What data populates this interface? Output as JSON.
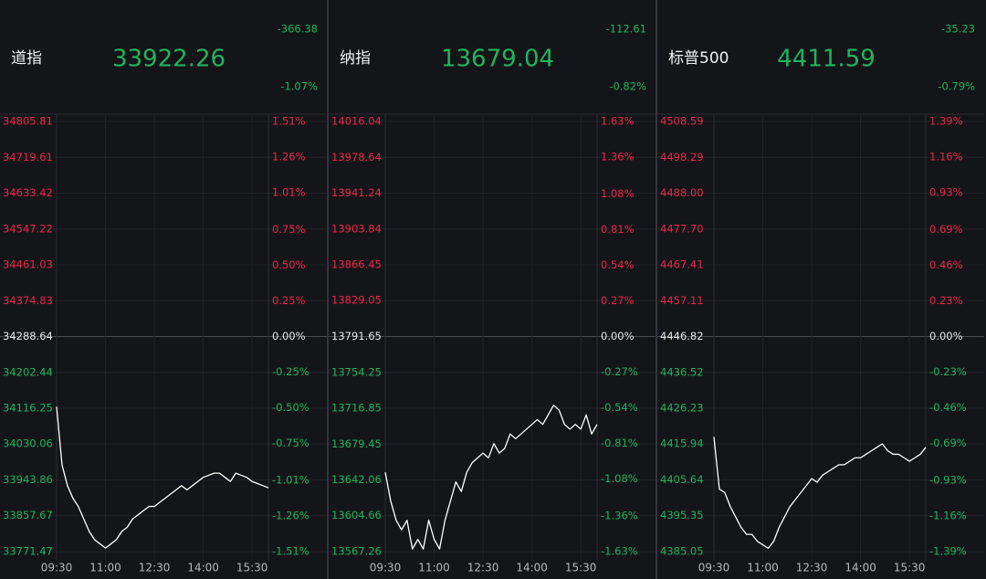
{
  "chart_data": [
    {
      "type": "line",
      "title": "道指",
      "price": 33922.26,
      "change": -366.38,
      "change_pct": {
        "value": -1.07,
        "label": "-1.07%"
      },
      "color": "#ffffff",
      "x": [
        "09:30",
        "09:40",
        "09:50",
        "10:00",
        "10:10",
        "10:20",
        "10:30",
        "10:40",
        "10:50",
        "11:00",
        "11:10",
        "11:20",
        "11:30",
        "11:40",
        "11:50",
        "12:00",
        "12:10",
        "12:20",
        "12:30",
        "12:40",
        "12:50",
        "13:00",
        "13:10",
        "13:20",
        "13:30",
        "13:40",
        "13:50",
        "14:00",
        "14:10",
        "14:20",
        "14:30",
        "14:40",
        "14:50",
        "15:00",
        "15:10",
        "15:20",
        "15:30",
        "15:40",
        "15:50",
        "16:00"
      ],
      "values": [
        34120,
        33980,
        33930,
        33900,
        33880,
        33850,
        33820,
        33800,
        33790,
        33780,
        33790,
        33800,
        33820,
        33830,
        33850,
        33860,
        33870,
        33880,
        33880,
        33890,
        33900,
        33910,
        33920,
        33930,
        33920,
        33930,
        33940,
        33950,
        33955,
        33960,
        33960,
        33950,
        33940,
        33960,
        33955,
        33950,
        33940,
        33935,
        33930,
        33925
      ],
      "xticks": [
        "09:30",
        "11:00",
        "12:30",
        "14:00",
        "15:30"
      ],
      "ylim": [
        33771.47,
        34805.81
      ],
      "yticks": [
        34805.81,
        34719.61,
        34633.42,
        34547.22,
        34461.03,
        34374.83,
        34288.64,
        34202.44,
        34116.25,
        34030.06,
        33943.86,
        33857.67,
        33771.47
      ],
      "y2lim": [
        -1.51,
        1.51
      ],
      "y2ticks": [
        {
          "value": 1.51,
          "label": "1.51%"
        },
        {
          "value": 1.26,
          "label": "1.26%"
        },
        {
          "value": 1.01,
          "label": "1.01%"
        },
        {
          "value": 0.75,
          "label": "0.75%"
        },
        {
          "value": 0.5,
          "label": "0.50%"
        },
        {
          "value": 0.25,
          "label": "0.25%"
        },
        {
          "value": 0,
          "label": "0.00%"
        },
        {
          "value": -0.25,
          "label": "-0.25%"
        },
        {
          "value": -0.5,
          "label": "-0.50%"
        },
        {
          "value": -0.75,
          "label": "-0.75%"
        },
        {
          "value": -1.01,
          "label": "-1.01%"
        },
        {
          "value": -1.26,
          "label": "-1.26%"
        },
        {
          "value": -1.51,
          "label": "-1.51%"
        }
      ]
    },
    {
      "type": "line",
      "title": "纳指",
      "price": 13679.04,
      "change": -112.61,
      "change_pct": {
        "value": -0.82,
        "label": "-0.82%"
      },
      "color": "#ffffff",
      "x": [
        "09:30",
        "09:40",
        "09:50",
        "10:00",
        "10:10",
        "10:20",
        "10:30",
        "10:40",
        "10:50",
        "11:00",
        "11:10",
        "11:20",
        "11:30",
        "11:40",
        "11:50",
        "12:00",
        "12:10",
        "12:20",
        "12:30",
        "12:40",
        "12:50",
        "13:00",
        "13:10",
        "13:20",
        "13:30",
        "13:40",
        "13:50",
        "14:00",
        "14:10",
        "14:20",
        "14:30",
        "14:40",
        "14:50",
        "15:00",
        "15:10",
        "15:20",
        "15:30",
        "15:40",
        "15:50",
        "16:00"
      ],
      "values": [
        13650,
        13620,
        13600,
        13590,
        13600,
        13570,
        13580,
        13570,
        13600,
        13580,
        13570,
        13600,
        13620,
        13640,
        13630,
        13650,
        13660,
        13665,
        13670,
        13665,
        13680,
        13670,
        13675,
        13690,
        13685,
        13690,
        13695,
        13700,
        13705,
        13700,
        13710,
        13720,
        13715,
        13700,
        13695,
        13700,
        13695,
        13710,
        13690,
        13700
      ],
      "xticks": [
        "09:30",
        "11:00",
        "12:30",
        "14:00",
        "15:30"
      ],
      "ylim": [
        13567.26,
        14016.04
      ],
      "yticks": [
        14016.04,
        13978.64,
        13941.24,
        13903.84,
        13866.45,
        13829.05,
        13791.65,
        13754.25,
        13716.85,
        13679.45,
        13642.06,
        13604.66,
        13567.26
      ],
      "y2lim": [
        -1.63,
        1.63
      ],
      "y2ticks": [
        {
          "value": 1.63,
          "label": "1.63%"
        },
        {
          "value": 1.36,
          "label": "1.36%"
        },
        {
          "value": 1.08,
          "label": "1.08%"
        },
        {
          "value": 0.81,
          "label": "0.81%"
        },
        {
          "value": 0.54,
          "label": "0.54%"
        },
        {
          "value": 0.27,
          "label": "0.27%"
        },
        {
          "value": 0,
          "label": "0.00%"
        },
        {
          "value": -0.27,
          "label": "-0.27%"
        },
        {
          "value": -0.54,
          "label": "-0.54%"
        },
        {
          "value": -0.81,
          "label": "-0.81%"
        },
        {
          "value": -1.08,
          "label": "-1.08%"
        },
        {
          "value": -1.36,
          "label": "-1.36%"
        },
        {
          "value": -1.63,
          "label": "-1.63%"
        }
      ]
    },
    {
      "type": "line",
      "title": "标普500",
      "price": 4411.59,
      "change": -35.23,
      "change_pct": {
        "value": -0.79,
        "label": "-0.79%"
      },
      "color": "#ffffff",
      "x": [
        "09:30",
        "09:40",
        "09:50",
        "10:00",
        "10:10",
        "10:20",
        "10:30",
        "10:40",
        "10:50",
        "11:00",
        "11:10",
        "11:20",
        "11:30",
        "11:40",
        "11:50",
        "12:00",
        "12:10",
        "12:20",
        "12:30",
        "12:40",
        "12:50",
        "13:00",
        "13:10",
        "13:20",
        "13:30",
        "13:40",
        "13:50",
        "14:00",
        "14:10",
        "14:20",
        "14:30",
        "14:40",
        "14:50",
        "15:00",
        "15:10",
        "15:20",
        "15:30",
        "15:40",
        "15:50",
        "16:00"
      ],
      "values": [
        4418,
        4403,
        4402,
        4398,
        4395,
        4392,
        4390,
        4390,
        4388,
        4387,
        4386,
        4388,
        4392,
        4395,
        4398,
        4400,
        4402,
        4404,
        4406,
        4405,
        4407,
        4408,
        4409,
        4410,
        4410,
        4411,
        4412,
        4412,
        4413,
        4414,
        4415,
        4416,
        4414,
        4413,
        4413,
        4412,
        4411,
        4412,
        4413,
        4415
      ],
      "xticks": [
        "09:30",
        "11:00",
        "12:30",
        "14:00",
        "15:30"
      ],
      "ylim": [
        4385.05,
        4508.59
      ],
      "yticks": [
        4508.59,
        4498.29,
        {
          "value": 4488,
          "label": "4488.00"
        },
        {
          "value": 4477.7,
          "label": "4477.70"
        },
        4467.41,
        4457.11,
        4446.82,
        4436.52,
        4426.23,
        4415.94,
        4405.64,
        4395.35,
        4385.05
      ],
      "y2lim": [
        -1.39,
        1.39
      ],
      "y2ticks": [
        {
          "value": 1.39,
          "label": "1.39%"
        },
        {
          "value": 1.16,
          "label": "1.16%"
        },
        {
          "value": 0.93,
          "label": "0.93%"
        },
        {
          "value": 0.69,
          "label": "0.69%"
        },
        {
          "value": 0.46,
          "label": "0.46%"
        },
        {
          "value": 0.23,
          "label": "0.23%"
        },
        {
          "value": 0,
          "label": "0.00%"
        },
        {
          "value": -0.23,
          "label": "-0.23%"
        },
        {
          "value": -0.46,
          "label": "-0.46%"
        },
        {
          "value": -0.69,
          "label": "-0.69%"
        },
        {
          "value": -0.93,
          "label": "-0.93%"
        },
        {
          "value": -1.16,
          "label": "-1.16%"
        },
        {
          "value": -1.39,
          "label": "-1.39%"
        }
      ]
    }
  ]
}
